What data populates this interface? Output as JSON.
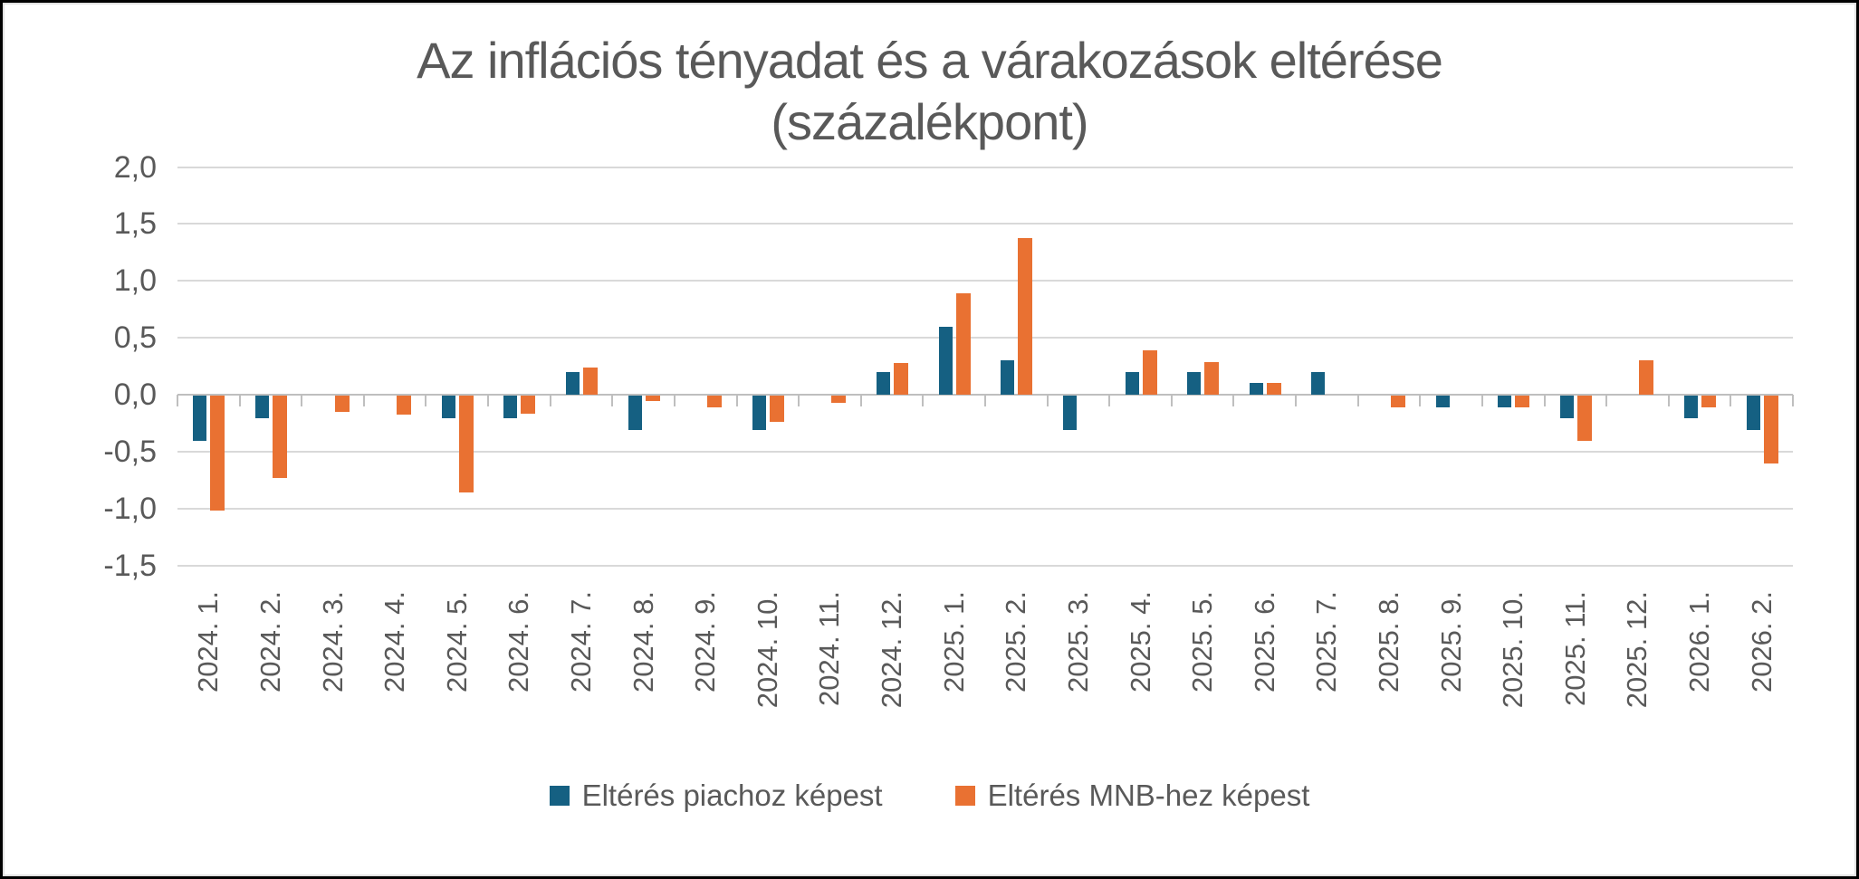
{
  "title": {
    "line1": "Az inflációs tényadat és a várakozások eltérése",
    "line2": "(százalékpont)"
  },
  "legend": [
    {
      "label": "Eltérés piachoz képest",
      "color": "#156082"
    },
    {
      "label": "Eltérés MNB-hez képest",
      "color": "#E97132"
    }
  ],
  "colors": {
    "series_blue": "#156082",
    "series_orange": "#E97132",
    "gridline": "#d9d9d9",
    "axis": "#bfbfbf",
    "text": "#595959"
  },
  "chart_data": {
    "type": "bar",
    "title": "Az inflációs tényadat és a várakozások eltérése (százalékpont)",
    "categories": [
      "2024. 1.",
      "2024. 2.",
      "2024. 3.",
      "2024. 4.",
      "2024. 5.",
      "2024. 6.",
      "2024. 7.",
      "2024. 8.",
      "2024. 9.",
      "2024. 10.",
      "2024. 11.",
      "2024. 12.",
      "2025. 1.",
      "2025. 2.",
      "2025. 3.",
      "2025. 4.",
      "2025. 5.",
      "2025. 6.",
      "2025. 7.",
      "2025. 8.",
      "2025. 9.",
      "2025. 10.",
      "2025. 11.",
      "2025. 12.",
      "2026. 1.",
      "2026. 2."
    ],
    "series": [
      {
        "name": "Eltérés piachoz képest",
        "color": "#156082",
        "values": [
          -0.4,
          -0.2,
          0,
          0,
          -0.2,
          -0.2,
          0.2,
          -0.3,
          0,
          -0.3,
          0,
          0.2,
          0.6,
          0.3,
          -0.3,
          0.2,
          0.2,
          0.1,
          0.2,
          0,
          -0.1,
          -0.1,
          -0.2,
          0,
          -0.2,
          -0.3
        ]
      },
      {
        "name": "Eltérés MNB-hez képest",
        "color": "#E97132",
        "values": [
          -1.01,
          -0.72,
          -0.14,
          -0.17,
          -0.85,
          -0.16,
          0.24,
          -0.05,
          -0.1,
          -0.23,
          -0.06,
          0.28,
          0.89,
          1.38,
          0,
          0.39,
          0.29,
          0.1,
          0,
          -0.1,
          0,
          -0.1,
          -0.4,
          0.3,
          -0.1,
          -0.6
        ]
      }
    ],
    "y_ticks": [
      "2,0",
      "1,5",
      "1,0",
      "0,5",
      "0,0",
      "-0,5",
      "-1,0",
      "-1,5"
    ],
    "ylim": [
      -1.5,
      2.0
    ],
    "grid": true,
    "legend_position": "bottom"
  }
}
